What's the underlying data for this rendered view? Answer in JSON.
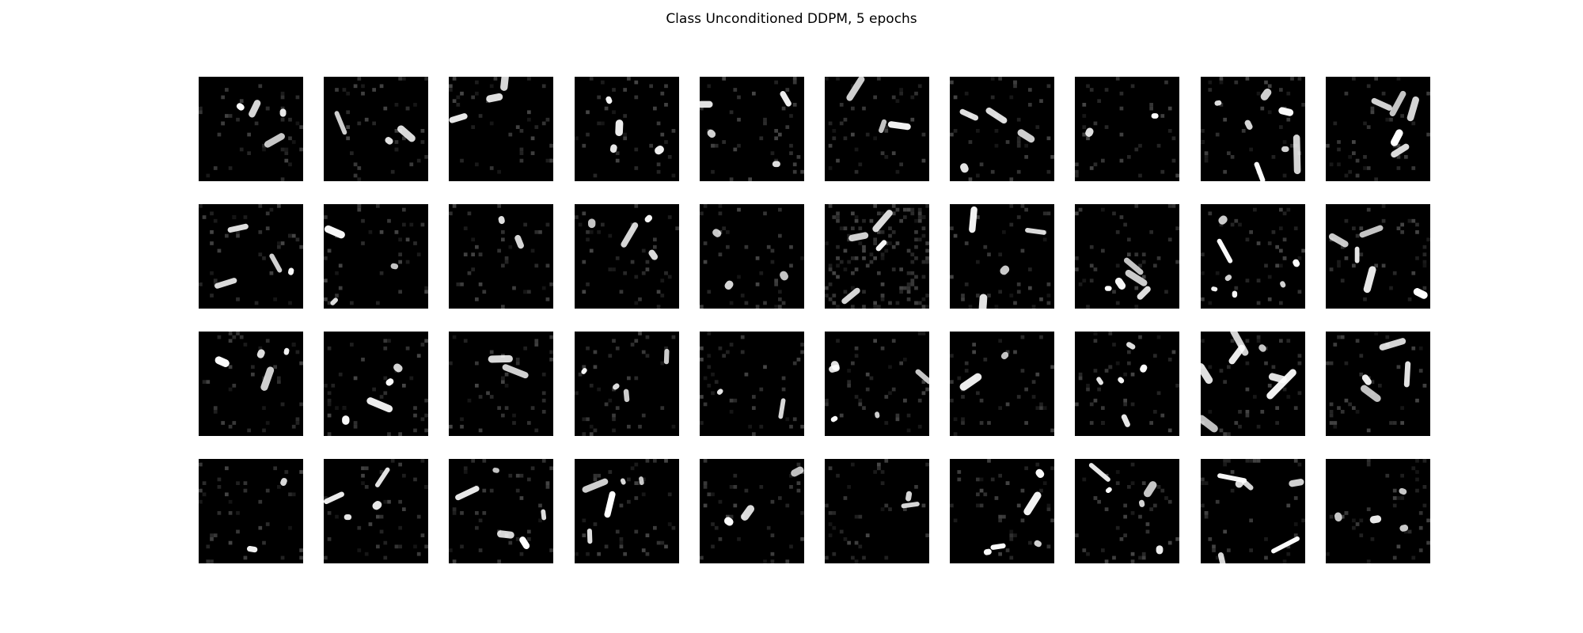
{
  "figure": {
    "title": "Class Unconditioned DDPM, 5 epochs"
  },
  "sample_grid": {
    "rows": 4,
    "columns": 10,
    "colors": {
      "tile_background": "#000000",
      "stroke": "#ffffff",
      "noise": "#1a1a1a"
    }
  }
}
